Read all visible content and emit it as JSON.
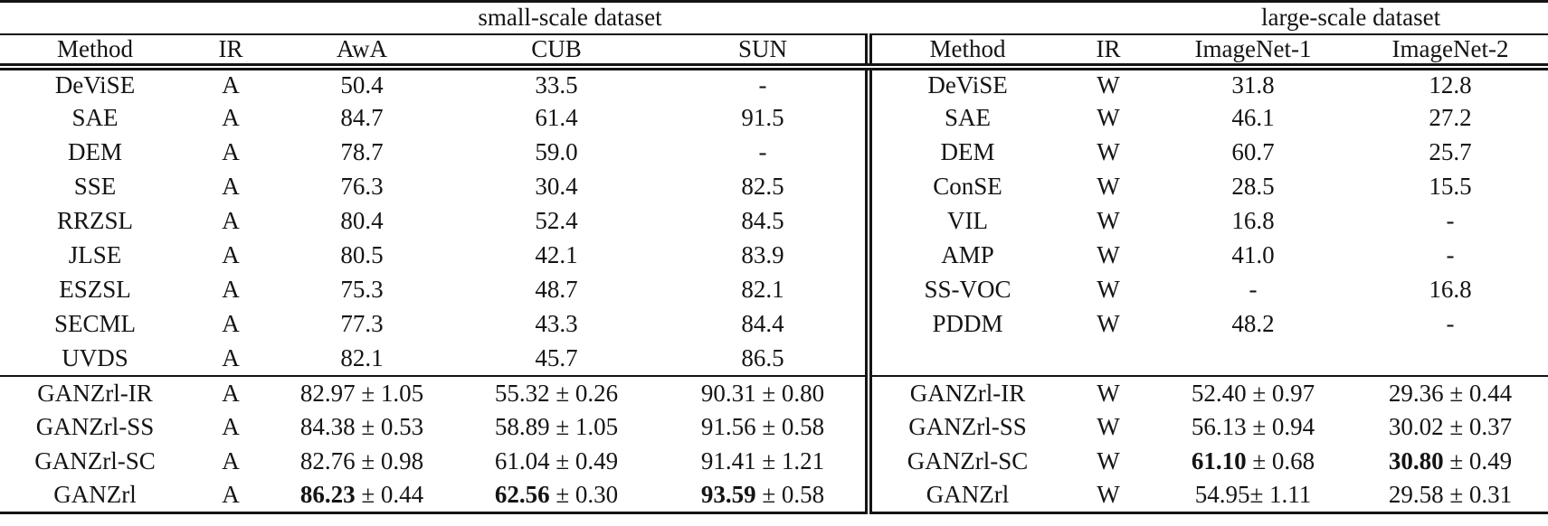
{
  "captions": {
    "left": "small-scale dataset",
    "right": "large-scale dataset"
  },
  "headers": {
    "left": [
      "Method",
      "IR",
      "AwA",
      "CUB",
      "SUN"
    ],
    "right": [
      "Method",
      "IR",
      "ImageNet-1",
      "ImageNet-2"
    ]
  },
  "rows": [
    {
      "rule_above": false,
      "left": [
        "DeViSE",
        "A",
        "50.4",
        "33.5",
        "-"
      ],
      "right": [
        "DeViSE",
        "W",
        "31.8",
        "12.8"
      ]
    },
    {
      "rule_above": false,
      "left": [
        "SAE",
        "A",
        "84.7",
        "61.4",
        "91.5"
      ],
      "right": [
        "SAE",
        "W",
        "46.1",
        "27.2"
      ]
    },
    {
      "rule_above": false,
      "left": [
        "DEM",
        "A",
        "78.7",
        "59.0",
        "-"
      ],
      "right": [
        "DEM",
        "W",
        "60.7",
        "25.7"
      ]
    },
    {
      "rule_above": false,
      "left": [
        "SSE",
        "A",
        "76.3",
        "30.4",
        "82.5"
      ],
      "right": [
        "ConSE",
        "W",
        "28.5",
        "15.5"
      ]
    },
    {
      "rule_above": false,
      "left": [
        "RRZSL",
        "A",
        "80.4",
        "52.4",
        "84.5"
      ],
      "right": [
        "VIL",
        "W",
        "16.8",
        "-"
      ]
    },
    {
      "rule_above": false,
      "left": [
        "JLSE",
        "A",
        "80.5",
        "42.1",
        "83.9"
      ],
      "right": [
        "AMP",
        "W",
        "41.0",
        "-"
      ]
    },
    {
      "rule_above": false,
      "left": [
        "ESZSL",
        "A",
        "75.3",
        "48.7",
        "82.1"
      ],
      "right": [
        "SS-VOC",
        "W",
        "-",
        "16.8"
      ]
    },
    {
      "rule_above": false,
      "left": [
        "SECML",
        "A",
        "77.3",
        "43.3",
        "84.4"
      ],
      "right": [
        "PDDM",
        "W",
        "48.2",
        "-"
      ]
    },
    {
      "rule_above": false,
      "left": [
        "UVDS",
        "A",
        "82.1",
        "45.7",
        "86.5"
      ],
      "right": [
        "",
        "",
        "",
        ""
      ]
    },
    {
      "rule_above": true,
      "left": [
        "GANZrl-IR",
        "A",
        "82.97 ± 1.05",
        "55.32 ± 0.26",
        "90.31 ± 0.80"
      ],
      "right": [
        "GANZrl-IR",
        "W",
        "52.40 ± 0.97",
        "29.36 ± 0.44"
      ]
    },
    {
      "rule_above": false,
      "left": [
        "GANZrl-SS",
        "A",
        "84.38 ± 0.53",
        "58.89 ± 1.05",
        "91.56 ± 0.58"
      ],
      "right": [
        "GANZrl-SS",
        "W",
        "56.13 ± 0.94",
        "30.02 ± 0.37"
      ]
    },
    {
      "rule_above": false,
      "left": [
        "GANZrl-SC",
        "A",
        "82.76 ± 0.98",
        "61.04 ± 0.49",
        "91.41 ± 1.21"
      ],
      "right": [
        "GANZrl-SC",
        "W",
        {
          "b": "61.10",
          "r": " ± 0.68"
        },
        {
          "b": "30.80",
          "r": " ± 0.49"
        }
      ]
    },
    {
      "rule_above": false,
      "left": [
        "GANZrl",
        "A",
        {
          "b": "86.23",
          "r": " ± 0.44"
        },
        {
          "b": "62.56",
          "r": " ± 0.30"
        },
        {
          "b": "93.59",
          "r": " ± 0.58"
        }
      ],
      "right": [
        "GANZrl",
        "W",
        "54.95± 1.11",
        "29.58 ± 0.31"
      ]
    }
  ]
}
